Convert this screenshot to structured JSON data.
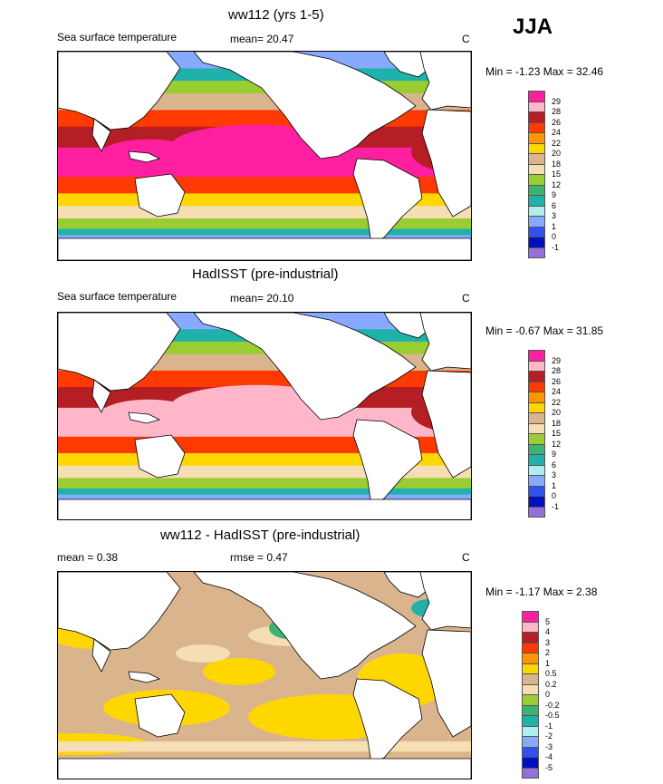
{
  "season": "JJA",
  "panels": [
    {
      "title": "ww112 (yrs 1-5)",
      "left_text": "Sea surface temperature",
      "mid_text": "mean=  20.47",
      "units": "C",
      "minmax": "Min =  -1.23 Max =  32.46",
      "levels": [
        "29",
        "28",
        "26",
        "24",
        "22",
        "20",
        "18",
        "15",
        "12",
        "9",
        "6",
        "3",
        "1",
        "0",
        "-1"
      ],
      "colors": [
        "#ff1fa0",
        "#ffb6c8",
        "#b41e24",
        "#ff3a00",
        "#ff9500",
        "#ffd700",
        "#d9b48c",
        "#f5deb3",
        "#9acd32",
        "#3cb371",
        "#20b2aa",
        "#afeeee",
        "#87aaff",
        "#3050f0",
        "#0010c0",
        "#9370db"
      ]
    },
    {
      "title": "HadISST (pre-industrial)",
      "left_text": "Sea surface temperature",
      "mid_text": "mean=  20.10",
      "units": "C",
      "minmax": "Min =  -0.67 Max =  31.85",
      "levels": [
        "29",
        "28",
        "26",
        "24",
        "22",
        "20",
        "18",
        "15",
        "12",
        "9",
        "6",
        "3",
        "1",
        "0",
        "-1"
      ],
      "colors": [
        "#ff1fa0",
        "#ffb6c8",
        "#b41e24",
        "#ff3a00",
        "#ff9500",
        "#ffd700",
        "#d9b48c",
        "#f5deb3",
        "#9acd32",
        "#3cb371",
        "#20b2aa",
        "#afeeee",
        "#87aaff",
        "#3050f0",
        "#0010c0",
        "#9370db"
      ]
    },
    {
      "title": "ww112 - HadISST (pre-industrial)",
      "left_text": "mean =   0.38",
      "mid_text": "rmse =   0.47",
      "units": "C",
      "minmax": "Min =  -1.17 Max =   2.38",
      "levels": [
        "5",
        "4",
        "3",
        "2",
        "1",
        "0.5",
        "0.2",
        "0",
        "-0.2",
        "-0.5",
        "-1",
        "-2",
        "-3",
        "-4",
        "-5"
      ],
      "colors": [
        "#ff1fa0",
        "#ffb6c8",
        "#b41e24",
        "#ff3a00",
        "#ff9500",
        "#ffd700",
        "#d9b48c",
        "#f5deb3",
        "#9acd32",
        "#3cb371",
        "#20b2aa",
        "#afeeee",
        "#87aaff",
        "#3050f0",
        "#0010c0",
        "#9370db"
      ]
    }
  ],
  "chart_data": [
    {
      "type": "heatmap",
      "title": "ww112 (yrs 1-5)",
      "field": "Sea surface temperature",
      "units": "C",
      "mean": 20.47,
      "min": -1.23,
      "max": 32.46,
      "levels": [
        29,
        28,
        26,
        24,
        22,
        20,
        18,
        15,
        12,
        9,
        6,
        3,
        1,
        0,
        -1
      ],
      "colormap": "temperature"
    },
    {
      "type": "heatmap",
      "title": "HadISST (pre-industrial)",
      "field": "Sea surface temperature",
      "units": "C",
      "mean": 20.1,
      "min": -0.67,
      "max": 31.85,
      "levels": [
        29,
        28,
        26,
        24,
        22,
        20,
        18,
        15,
        12,
        9,
        6,
        3,
        1,
        0,
        -1
      ],
      "colormap": "temperature"
    },
    {
      "type": "heatmap",
      "title": "ww112 - HadISST (pre-industrial)",
      "units": "C",
      "mean": 0.38,
      "rmse": 0.47,
      "min": -1.17,
      "max": 2.38,
      "levels": [
        5,
        4,
        3,
        2,
        1,
        0.5,
        0.2,
        0,
        -0.2,
        -0.5,
        -1,
        -2,
        -3,
        -4,
        -5
      ],
      "colormap": "difference"
    }
  ]
}
